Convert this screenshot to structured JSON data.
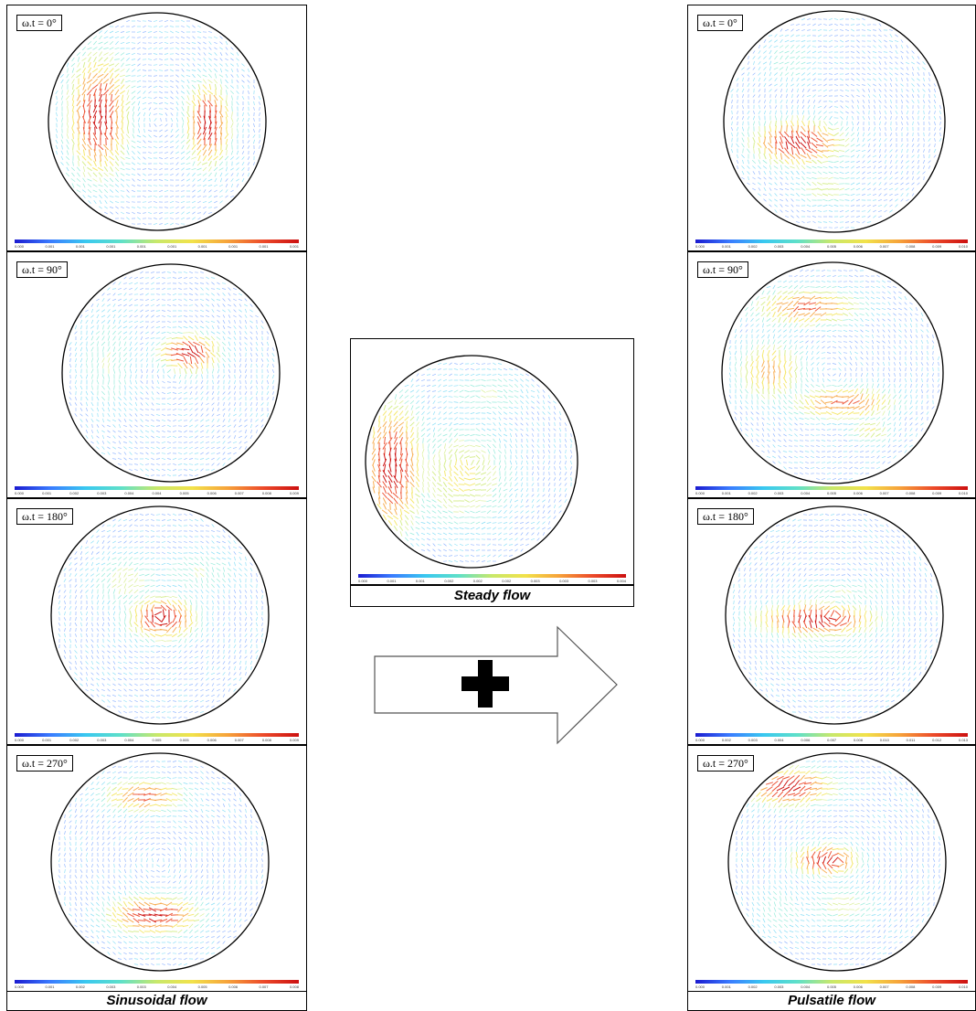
{
  "left_column": {
    "panels": [
      {
        "label": "ω.t = 0°",
        "ticks": [
          "0.000",
          "0.001",
          "0.001",
          "0.001",
          "0.001",
          "0.001",
          "0.001",
          "0.001",
          "0.001",
          "0.001"
        ]
      },
      {
        "label": "ω.t = 90°",
        "ticks": [
          "0.000",
          "0.001",
          "0.002",
          "0.003",
          "0.004",
          "0.004",
          "0.005",
          "0.006",
          "0.007",
          "0.008",
          "0.009"
        ]
      },
      {
        "label": "ω.t = 180°",
        "ticks": [
          "0.000",
          "0.001",
          "0.002",
          "0.003",
          "0.004",
          "0.005",
          "0.005",
          "0.006",
          "0.007",
          "0.008",
          "0.009"
        ]
      },
      {
        "label": "ω.t = 270°",
        "ticks": [
          "0.000",
          "0.001",
          "0.002",
          "0.003",
          "0.003",
          "0.004",
          "0.005",
          "0.006",
          "0.007",
          "0.008"
        ]
      }
    ],
    "caption": "Sinusoidal flow"
  },
  "center": {
    "ticks": [
      "0.000",
      "0.001",
      "0.001",
      "0.002",
      "0.002",
      "0.002",
      "0.003",
      "0.003",
      "0.003",
      "0.004"
    ],
    "caption": "Steady flow",
    "operator": "+"
  },
  "right_column": {
    "panels": [
      {
        "label": "ω.t = 0°",
        "ticks": [
          "0.000",
          "0.001",
          "0.002",
          "0.003",
          "0.004",
          "0.005",
          "0.006",
          "0.007",
          "0.008",
          "0.009",
          "0.010"
        ]
      },
      {
        "label": "ω.t = 90°",
        "ticks": [
          "0.000",
          "0.001",
          "0.002",
          "0.003",
          "0.004",
          "0.005",
          "0.006",
          "0.007",
          "0.008",
          "0.009",
          "0.010"
        ]
      },
      {
        "label": "ω.t = 180°",
        "ticks": [
          "0.000",
          "0.002",
          "0.003",
          "0.004",
          "0.006",
          "0.007",
          "0.008",
          "0.010",
          "0.011",
          "0.012",
          "0.013"
        ]
      },
      {
        "label": "ω.t = 270°",
        "ticks": [
          "0.000",
          "0.001",
          "0.002",
          "0.003",
          "0.004",
          "0.005",
          "0.006",
          "0.007",
          "0.008",
          "0.009",
          "0.010"
        ]
      }
    ],
    "caption": "Pulsatile flow"
  },
  "colors": {
    "colormap": [
      "#1b1bd0",
      "#3a7bff",
      "#39c8f0",
      "#5fe0c8",
      "#c8e86a",
      "#f2e24a",
      "#f6a23a",
      "#ec4a2a",
      "#cc1010"
    ]
  }
}
